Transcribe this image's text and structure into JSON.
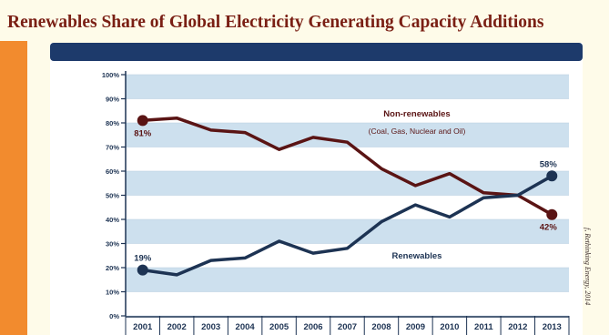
{
  "title": "Renewables Share of Global Electricity Generating Capacity Additions",
  "source_note": "f, Rethinking Energy, 2014",
  "colors": {
    "nonrenewables": "#5a1414",
    "renewables": "#1d3353",
    "band": "#cde0ee",
    "header": "#1d3a6b",
    "stripe": "#f28b2e"
  },
  "chart_data": {
    "type": "line",
    "title": "Renewables Share of Global Electricity Generating Capacity Additions",
    "x": [
      "2001",
      "2002",
      "2003",
      "2004",
      "2005",
      "2006",
      "2007",
      "2008",
      "2009",
      "2010",
      "2011",
      "2012",
      "2013"
    ],
    "yticks": [
      "0%",
      "10%",
      "20%",
      "30%",
      "40%",
      "50%",
      "60%",
      "70%",
      "80%",
      "90%",
      "100%"
    ],
    "ylim": [
      0,
      100
    ],
    "series": [
      {
        "name": "Non-renewables",
        "subtitle": "(Coal, Gas, Nuclear and Oil)",
        "values": [
          81,
          82,
          77,
          76,
          69,
          74,
          72,
          61,
          54,
          59,
          51,
          50,
          42
        ]
      },
      {
        "name": "Renewables",
        "values": [
          19,
          17,
          23,
          24,
          31,
          26,
          28,
          39,
          46,
          41,
          49,
          50,
          58
        ]
      }
    ],
    "annotations": [
      {
        "text": "81%",
        "series": 0,
        "index": 0
      },
      {
        "text": "42%",
        "series": 0,
        "index": 12
      },
      {
        "text": "19%",
        "series": 1,
        "index": 0
      },
      {
        "text": "58%",
        "series": 1,
        "index": 12
      }
    ]
  }
}
